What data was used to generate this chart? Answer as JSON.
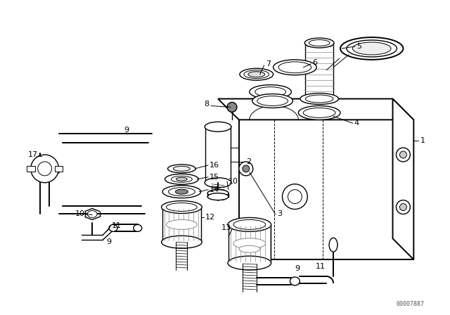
{
  "background_color": "#ffffff",
  "line_color": "#000000",
  "part_number_text": "00007887",
  "fig_width": 6.4,
  "fig_height": 4.48,
  "dpi": 100
}
